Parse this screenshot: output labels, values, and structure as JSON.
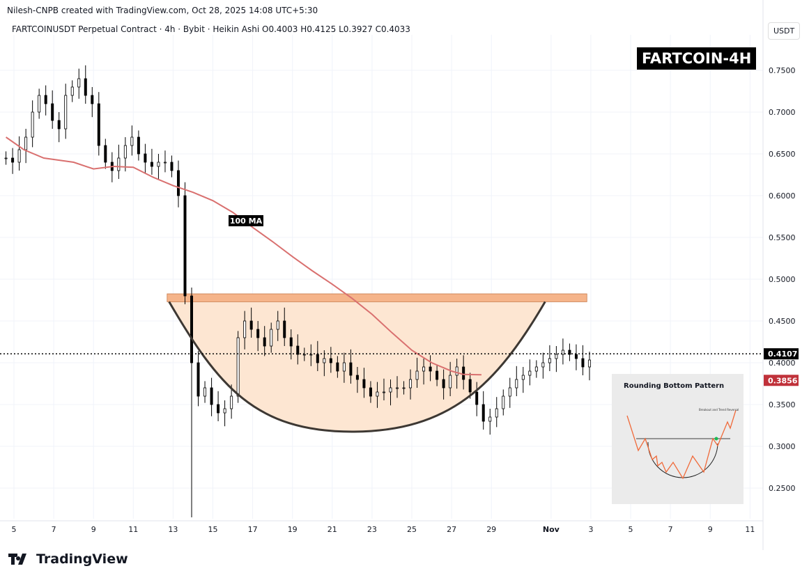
{
  "header": {
    "credit": "Nilesh-CNPB created with TradingView.com, Oct 28, 2025 14:08 UTC+5:30",
    "legend": "FARTCOINUSDT Perpetual Contract · 4h · Bybit · Heikin Ashi  O0.4003  H0.4125  L0.3927  C0.4033"
  },
  "currency": "USDT",
  "badge": "FARTCOIN-4H",
  "ma_label": "100 MA",
  "logo": "TradingView",
  "inset": {
    "title": "Rounding Bottom Pattern",
    "note": "Breakout and Trend Reversal"
  },
  "chart_data": {
    "type": "candlestick",
    "ylim": [
      0.22,
      0.78
    ],
    "y_ticks": [
      "0.7500",
      "0.7000",
      "0.6500",
      "0.6000",
      "0.5500",
      "0.5000",
      "0.4500",
      "0.4000",
      "0.3500",
      "0.3000",
      "0.2500"
    ],
    "x_ticks": [
      "5",
      "7",
      "9",
      "11",
      "13",
      "15",
      "17",
      "19",
      "21",
      "23",
      "25",
      "27",
      "29",
      "Nov",
      "3",
      "5",
      "7",
      "9",
      "11"
    ],
    "x_tick_days": [
      5,
      7,
      9,
      11,
      13,
      15,
      17,
      19,
      21,
      23,
      25,
      27,
      29,
      32,
      34,
      36,
      38,
      40,
      42
    ],
    "candle_start_day": 4.6,
    "candle_step_days": 0.3333,
    "closes": [
      0.645,
      0.64,
      0.655,
      0.67,
      0.7,
      0.72,
      0.71,
      0.69,
      0.68,
      0.72,
      0.73,
      0.74,
      0.72,
      0.71,
      0.66,
      0.64,
      0.63,
      0.645,
      0.66,
      0.67,
      0.65,
      0.64,
      0.635,
      0.64,
      0.64,
      0.63,
      0.6,
      0.48,
      0.4,
      0.36,
      0.37,
      0.35,
      0.34,
      0.345,
      0.36,
      0.43,
      0.45,
      0.44,
      0.43,
      0.42,
      0.44,
      0.45,
      0.43,
      0.42,
      0.41,
      0.41,
      0.41,
      0.4,
      0.405,
      0.4,
      0.39,
      0.4,
      0.385,
      0.38,
      0.37,
      0.36,
      0.365,
      0.365,
      0.37,
      0.37,
      0.37,
      0.38,
      0.39,
      0.395,
      0.39,
      0.38,
      0.37,
      0.385,
      0.395,
      0.38,
      0.365,
      0.35,
      0.33,
      0.335,
      0.345,
      0.36,
      0.37,
      0.38,
      0.385,
      0.39,
      0.395,
      0.4,
      0.405,
      0.41,
      0.415,
      0.41,
      0.405,
      0.395,
      0.4033
    ],
    "crash_low": 0.215,
    "ma100": {
      "days": [
        4.6,
        5.5,
        6.5,
        8,
        9,
        10,
        11,
        12,
        13,
        14,
        15,
        16,
        17,
        18,
        19,
        20,
        21,
        22,
        23,
        24,
        25,
        26,
        27,
        27.6,
        28.5
      ],
      "values": [
        0.67,
        0.655,
        0.645,
        0.64,
        0.632,
        0.635,
        0.634,
        0.622,
        0.612,
        0.604,
        0.594,
        0.58,
        0.562,
        0.545,
        0.527,
        0.51,
        0.494,
        0.477,
        0.458,
        0.436,
        0.415,
        0.4,
        0.39,
        0.386,
        0.3856
      ]
    },
    "resistance_zone": {
      "from_day": 12.7,
      "to_day": 33.8,
      "low": 0.473,
      "high": 0.4825
    },
    "rounding_bottom": {
      "start_day": 12.8,
      "bottom_day": 22.0,
      "end_day": 31.7,
      "top": 0.473,
      "bottom": 0.3175
    },
    "last_price": "0.4107",
    "last_price_value": 0.4107,
    "ma_price": "0.3856",
    "ma_price_value": 0.3856,
    "colors": {
      "up": "#000000",
      "ma": "#d9706f",
      "zone": "#f5b48a",
      "fill": "#fde6d2",
      "arc": "#3d3833",
      "ma_tag": "#c0313a"
    }
  }
}
